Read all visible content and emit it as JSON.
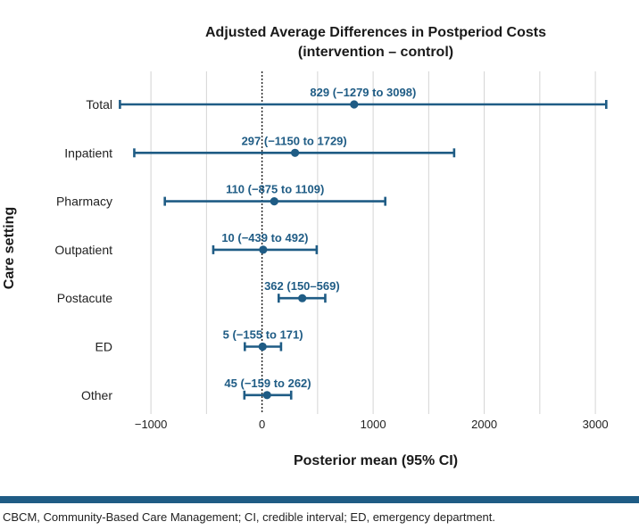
{
  "colors": {
    "series": "#1f5c85",
    "grid": "#d4d4d4",
    "footer_rule": "#1f5c85"
  },
  "chart_data": {
    "type": "forest",
    "title": "Adjusted Average Differences in Postperiod Costs",
    "subtitle": "(intervention – control)",
    "xlabel": "Posterior mean (95% CI)",
    "ylabel": "Care setting",
    "xlim": [
      -1250,
      3200
    ],
    "xticks": [
      -1000,
      0,
      1000,
      2000,
      3000
    ],
    "xtick_labels": [
      "−1000",
      "0",
      "1000",
      "2000",
      "3000"
    ],
    "reference_line": 0,
    "grid": true,
    "categories": [
      "Total",
      "Inpatient",
      "Pharmacy",
      "Outpatient",
      "Postacute",
      "ED",
      "Other"
    ],
    "series": [
      {
        "means": [
          829,
          297,
          110,
          10,
          362,
          5,
          45
        ],
        "lower": [
          -1279,
          -1150,
          -875,
          -439,
          150,
          -155,
          -159
        ],
        "upper": [
          3098,
          1729,
          1109,
          492,
          569,
          171,
          262
        ],
        "labels": [
          "829 (−1279 to 3098)",
          "297 (−1150 to 1729)",
          "110 (−875 to 1109)",
          "10 (−439 to 492)",
          "362 (150–569)",
          "5 (−155 to 171)",
          "45 (−159 to 262)"
        ]
      }
    ]
  },
  "footnote": "CBCM, Community-Based Care Management; CI, credible interval; ED, emergency department."
}
